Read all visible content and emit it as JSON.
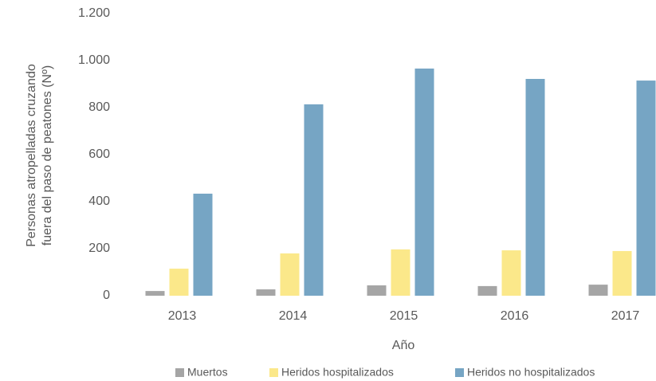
{
  "chart_data": {
    "type": "bar",
    "y_label": [
      "Personas atropelladas cruzando",
      "fuera del paso de peatones (Nº)"
    ],
    "x_label": "Año",
    "categories": [
      "2013",
      "2014",
      "2015",
      "2016",
      "2017"
    ],
    "series": [
      {
        "name": "Muertos",
        "color": "#a5a5a5",
        "values": [
          20,
          27,
          44,
          41,
          47
        ]
      },
      {
        "name": "Heridos hospitalizados",
        "color": "#fbe88a",
        "values": [
          115,
          180,
          197,
          193,
          190
        ]
      },
      {
        "name": "Heridos no hospitalizados",
        "color": "#76a5c4",
        "values": [
          434,
          814,
          966,
          922,
          915
        ]
      }
    ],
    "ylim": [
      0,
      1200
    ],
    "yticks": [
      0,
      200,
      400,
      600,
      800,
      {
        "value": 1000,
        "label": "1.000"
      },
      {
        "value": 1200,
        "label": "1.200"
      }
    ],
    "grid": false,
    "legend": "bottom"
  }
}
